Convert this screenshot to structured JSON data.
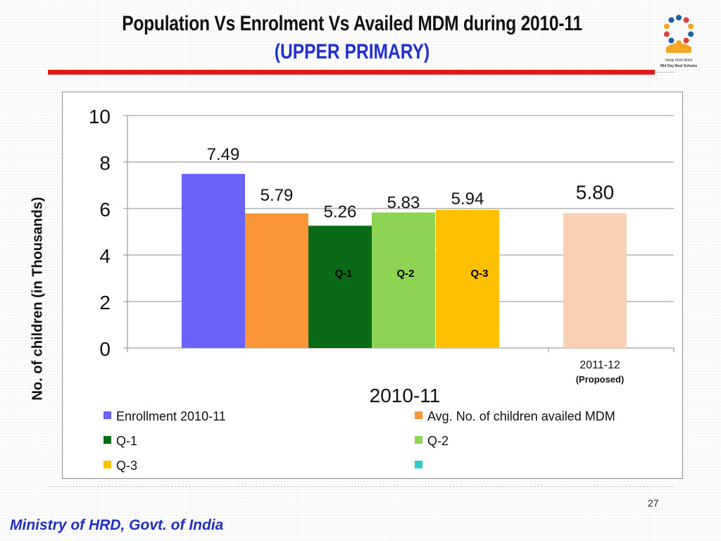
{
  "header": {
    "title": "Population Vs Enrolment Vs Availed MDM during  2010-11",
    "subtitle": "(UPPER PRIMARY)"
  },
  "logo": {
    "text_line1": "मध्याह्न भोजन योजना",
    "text_line2": "Mid Day Meal Scheme"
  },
  "footer": {
    "page_number": "27",
    "organization": "Ministry of HRD, Govt. of India"
  },
  "chart_data": {
    "type": "bar",
    "ylabel": "No. of children (in Thousands)",
    "ylim": [
      0,
      10
    ],
    "yticks": [
      "0",
      "2",
      "4",
      "6",
      "8",
      "10"
    ],
    "grid": true,
    "categories": [
      "2010-11",
      "2011-12"
    ],
    "category_sublabels": [
      "",
      "(Proposed)"
    ],
    "series": [
      {
        "name": "Enrollment 2010-11",
        "color": "#6a63f8",
        "value": 7.49,
        "label": "7.49",
        "category": 0,
        "inner_label": ""
      },
      {
        "name": "Avg. No. of children availed MDM",
        "color": "#fb9638",
        "value": 5.79,
        "label": "5.79",
        "category": 0,
        "inner_label": ""
      },
      {
        "name": "Q-1",
        "color": "#0b6a16",
        "value": 5.26,
        "label": "5.26",
        "category": 0,
        "inner_label": "Q-1"
      },
      {
        "name": "Q-2",
        "color": "#8ed454",
        "value": 5.83,
        "label": "5.83",
        "category": 0,
        "inner_label": "Q-2"
      },
      {
        "name": "Q-3",
        "color": "#ffc000",
        "value": 5.94,
        "label": "5.94",
        "category": 0,
        "inner_label": "Q-3"
      },
      {
        "name": "",
        "color": "#f9d0b4",
        "value": 5.8,
        "label": "5.80",
        "category": 1,
        "inner_label": ""
      }
    ],
    "legend": {
      "placement": "bottom",
      "entries": [
        {
          "label": "Enrollment 2010-11",
          "color": "#6a63f8"
        },
        {
          "label": "Avg. No. of children availed MDM",
          "color": "#fb9638"
        },
        {
          "label": "Q-1",
          "color": "#0b6a16"
        },
        {
          "label": "Q-2",
          "color": "#8ed454"
        },
        {
          "label": "Q-3",
          "color": "#ffc000"
        },
        {
          "label": "",
          "color": "#2ec9c9"
        }
      ]
    }
  }
}
